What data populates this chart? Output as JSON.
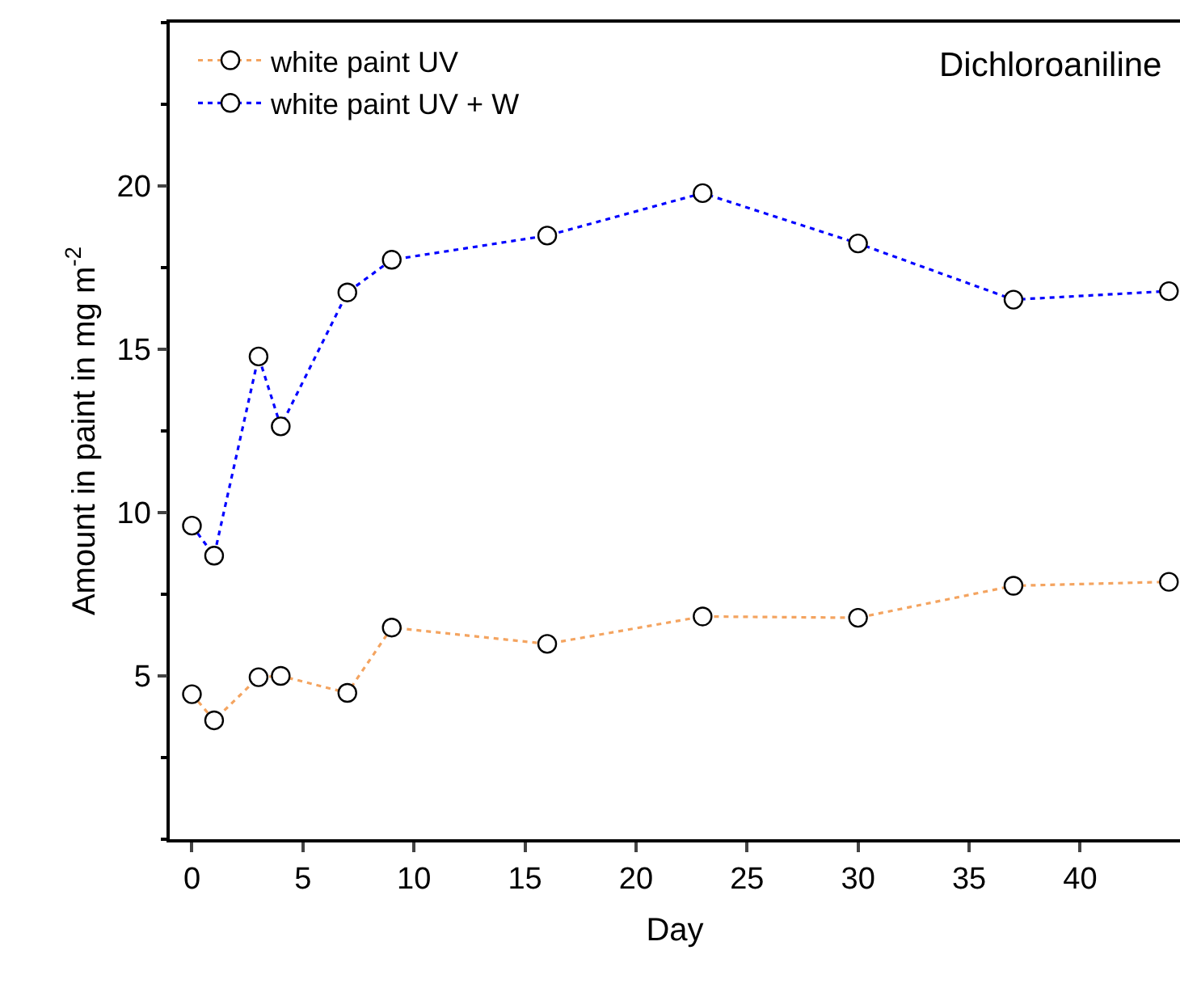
{
  "chart_data": {
    "type": "line",
    "title": "Dichloroaniline",
    "xlabel": "Day",
    "ylabel": "Amount in paint in mg m$^{-2}$",
    "x": [
      0,
      1,
      3,
      4,
      7,
      9,
      16,
      23,
      30,
      37,
      44
    ],
    "series": [
      {
        "name": "white paint UV",
        "color": "#f4a460",
        "values": [
          4.44,
          3.64,
          4.96,
          5.0,
          4.48,
          6.48,
          5.98,
          6.82,
          6.78,
          7.76,
          7.88
        ]
      },
      {
        "name": "white paint UV + W",
        "color": "#0000ff",
        "values": [
          9.6,
          8.68,
          14.78,
          12.64,
          16.74,
          17.74,
          18.48,
          19.78,
          18.24,
          16.52,
          16.78
        ]
      }
    ],
    "xlim": [
      -1,
      44.5
    ],
    "xticks": [
      0,
      5,
      10,
      15,
      20,
      25,
      30,
      35,
      40
    ],
    "ylim": [
      0,
      25
    ],
    "yticks": [
      5,
      10,
      15,
      20
    ],
    "legend": "top left",
    "marker": "circle",
    "line_style": "dotted"
  }
}
